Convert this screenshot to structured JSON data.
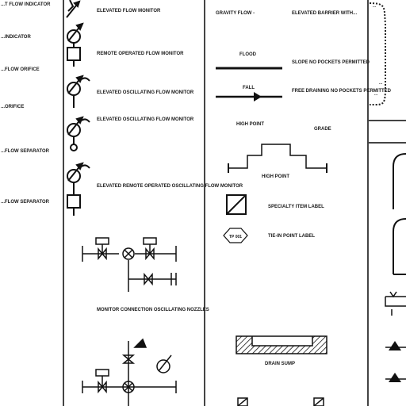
{
  "col_a": {
    "labels": [
      "...T FLOW INDICATOR",
      "...INDICATOR",
      "...FLOW ORIFICE",
      "...ORIFICE",
      "...FLOW SEPARATOR",
      "...FLOW SEPARATOR"
    ]
  },
  "col_b": {
    "labels": [
      "ELEVATED FLOW MONITOR",
      "REMOTE OPERATED FLOW MONITOR",
      "ELEVATED OSCILLATING FLOW MONITOR",
      "ELEVATED OSCILLATING FLOW MONITOR",
      "ELEVATED REMOTE OPERATED OSCILLATING FLOW MONITOR",
      "MONITOR CONNECTION OSCILLATING NOZZLES"
    ]
  },
  "col_c": {
    "gravity_label": "GRAVITY FLOW -",
    "gravity_desc": "ELEVATED BARRIER WITH...",
    "line1_label": "FLOOD",
    "line1_desc": "SLOPE NO POCKETS PERMITTED",
    "line2_label": "FALL",
    "line2_desc": "FREE DRAINING NO POCKETS PERMITTED",
    "left_header": "HIGH POINT",
    "right_header": "GRADE",
    "highpoint_label": "HIGH POINT",
    "specialty_label": "SPECIALTY ITEM LABEL",
    "tie_in_label": "TIE-IN POINT LABEL",
    "tie_in_tag": "TP 001",
    "sump_label": "DRAIN SUMP"
  },
  "col_d": {
    "labels": [
      "...",
      "...",
      "..."
    ]
  }
}
